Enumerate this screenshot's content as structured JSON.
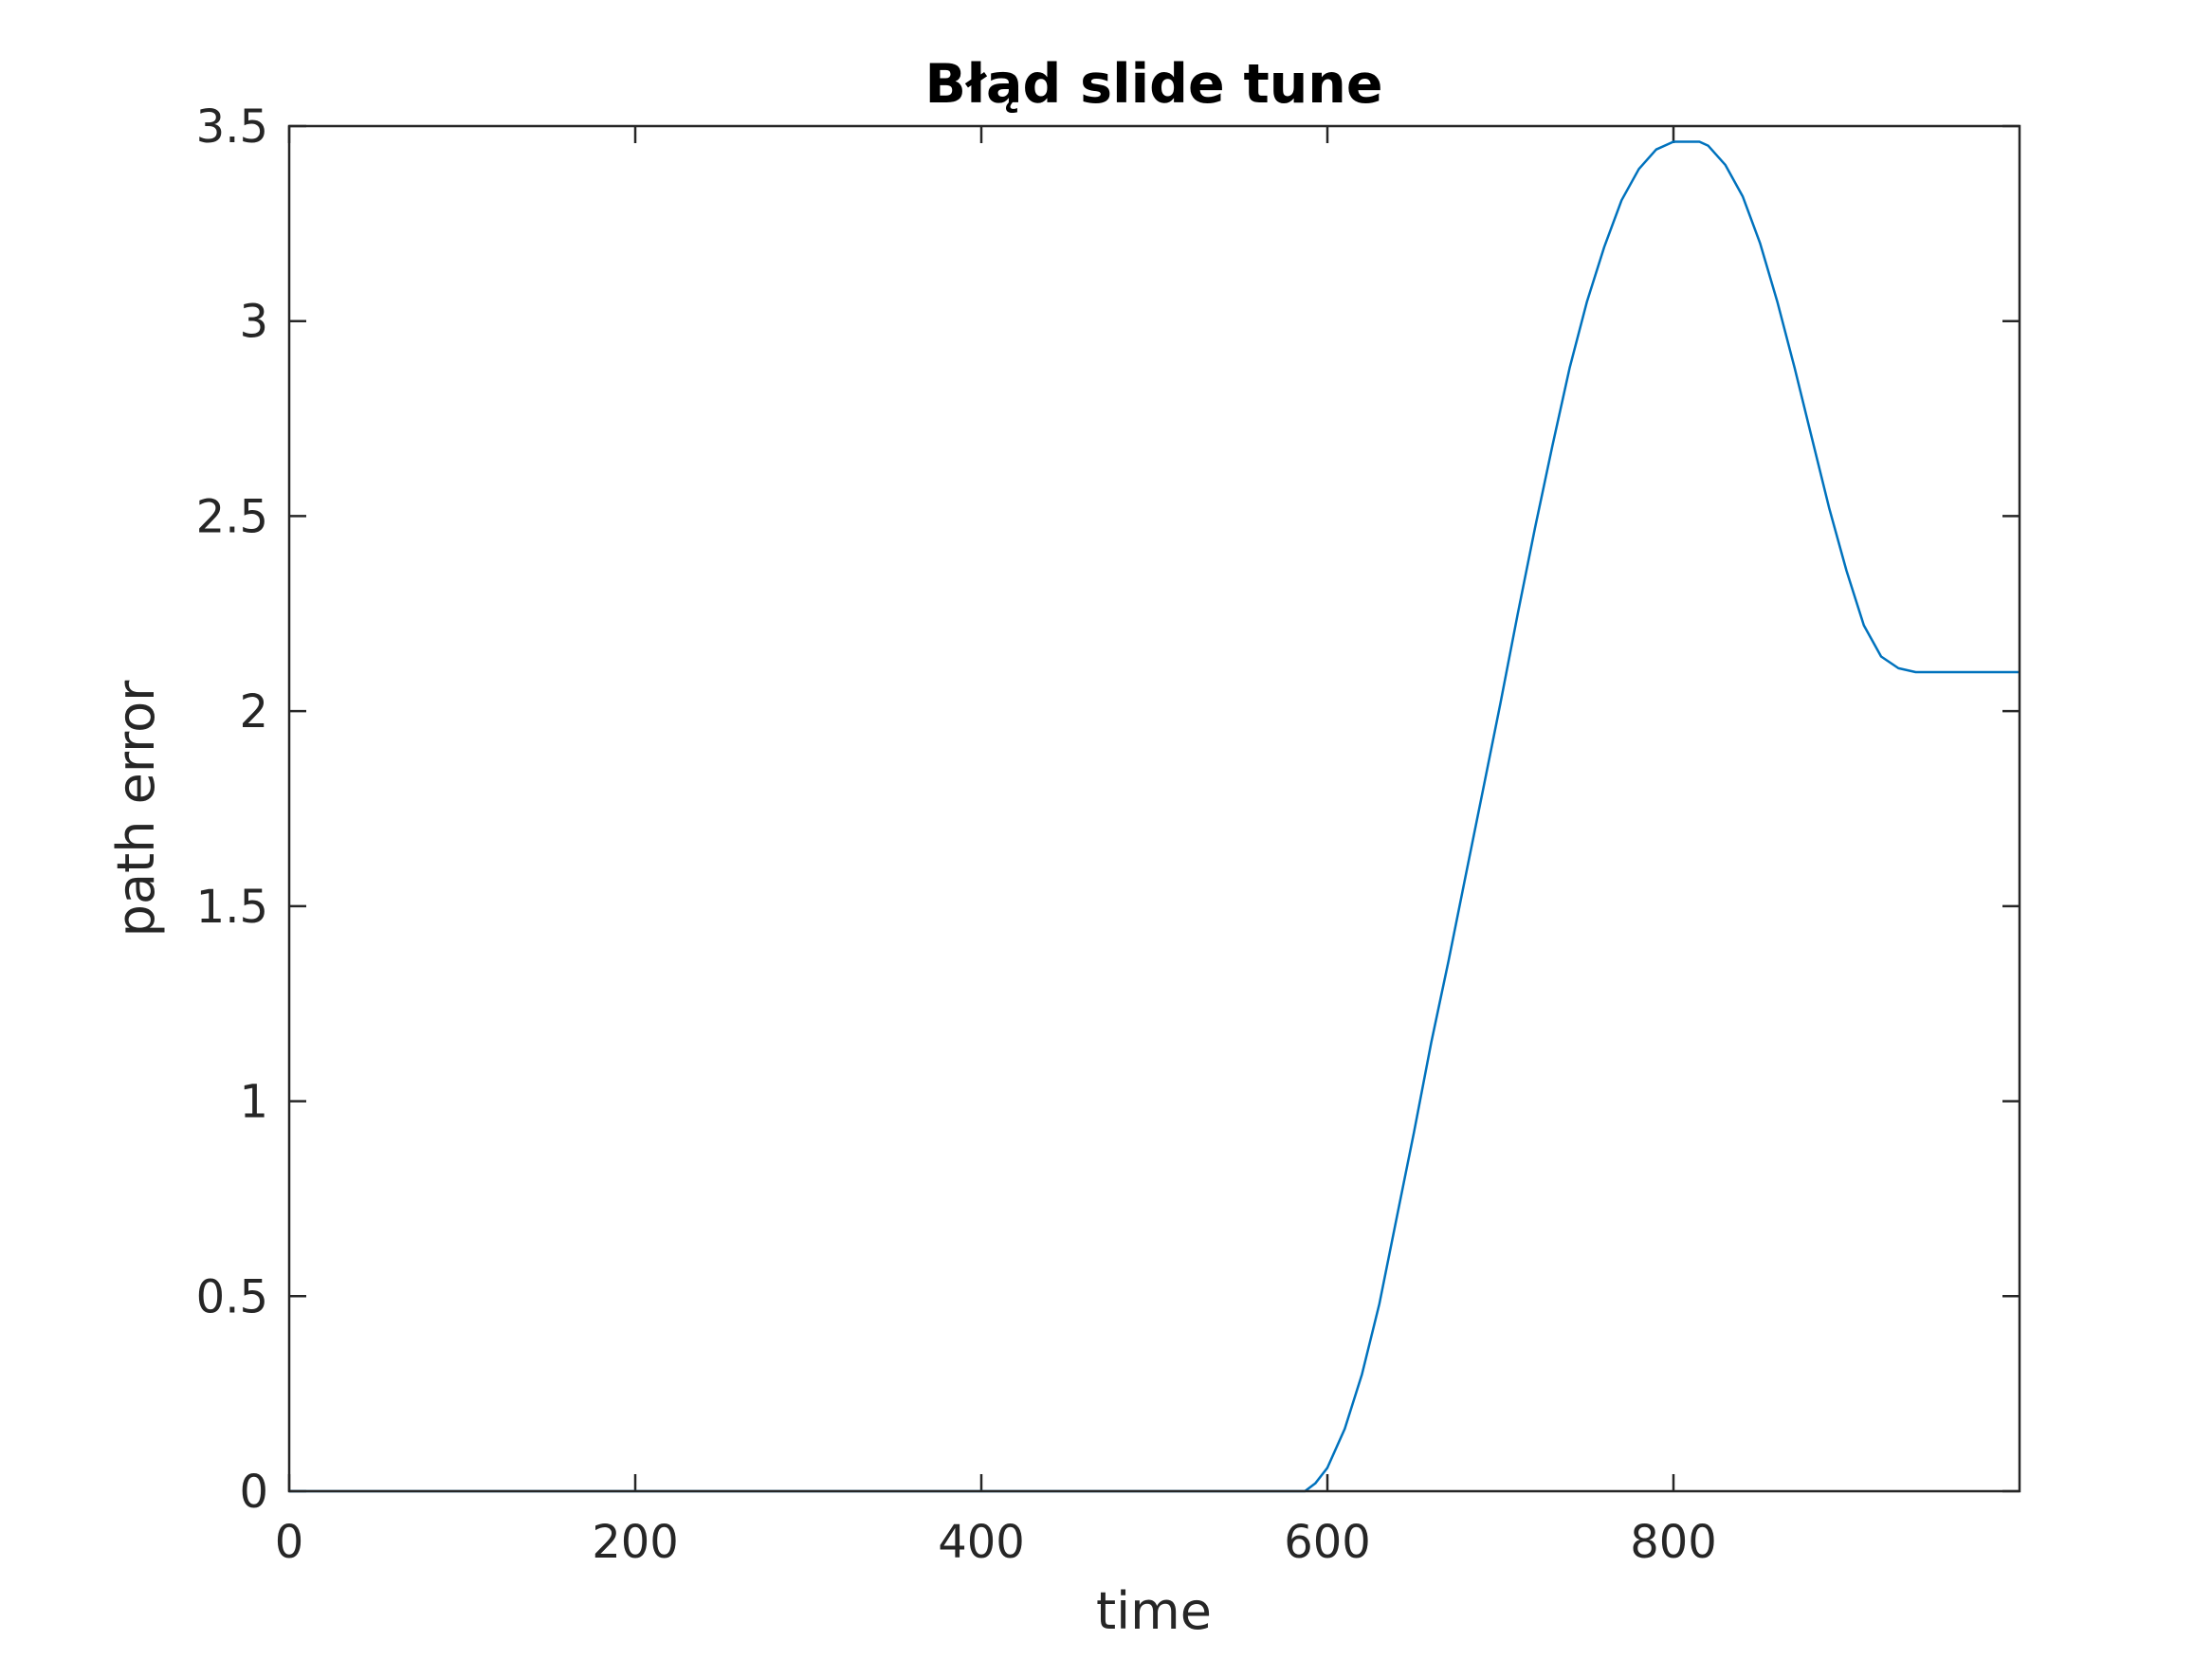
{
  "chart_data": {
    "type": "line",
    "title": "Błąd slide tune",
    "xlabel": "time",
    "ylabel": "path error",
    "xlim": [
      0,
      1000
    ],
    "ylim": [
      0,
      3.5
    ],
    "xticks": [
      0,
      200,
      400,
      600,
      800
    ],
    "xtick_labels": [
      "0",
      "200",
      "400",
      "600",
      "800"
    ],
    "yticks": [
      0,
      0.5,
      1,
      1.5,
      2,
      2.5,
      3,
      3.5
    ],
    "ytick_labels": [
      "0",
      "0.5",
      "1",
      "1.5",
      "2",
      "2.5",
      "3",
      "3.5"
    ],
    "grid": false,
    "legend": "none",
    "line_color": "#0072BD",
    "series": [
      {
        "x": [
          0,
          587,
          593,
          600,
          610,
          620,
          630,
          640,
          650,
          660,
          670,
          680,
          690,
          700,
          710,
          720,
          730,
          740,
          750,
          760,
          770,
          780,
          790,
          800,
          810,
          815,
          820,
          830,
          840,
          850,
          860,
          870,
          880,
          890,
          900,
          910,
          920,
          930,
          940,
          945,
          950,
          1000
        ],
        "y": [
          0,
          0,
          0.02,
          0.06,
          0.16,
          0.3,
          0.48,
          0.7,
          0.92,
          1.15,
          1.36,
          1.58,
          1.8,
          2.02,
          2.25,
          2.47,
          2.68,
          2.88,
          3.05,
          3.19,
          3.31,
          3.39,
          3.44,
          3.46,
          3.46,
          3.46,
          3.45,
          3.4,
          3.32,
          3.2,
          3.05,
          2.88,
          2.7,
          2.52,
          2.36,
          2.22,
          2.14,
          2.11,
          2.1,
          2.1,
          2.1,
          2.1
        ]
      }
    ]
  }
}
